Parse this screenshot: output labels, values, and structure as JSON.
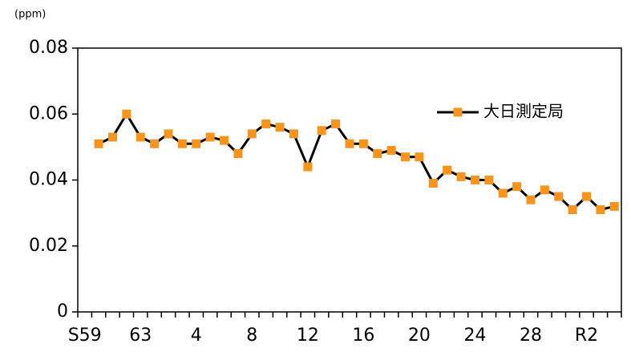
{
  "chart_data": {
    "type": "line",
    "y_label": "(ppm)",
    "categories": [
      "S59",
      null,
      null,
      null,
      "63",
      null,
      null,
      null,
      "4",
      null,
      null,
      null,
      "8",
      null,
      null,
      null,
      "12",
      null,
      null,
      null,
      "16",
      null,
      null,
      null,
      "20",
      null,
      null,
      null,
      "24",
      null,
      null,
      null,
      "28",
      null,
      null,
      null,
      "R2",
      null,
      null
    ],
    "series": [
      {
        "name": "大日測定局",
        "color": "#000000",
        "marker_color": "#f7941d",
        "values": [
          null,
          0.051,
          0.053,
          0.06,
          0.053,
          0.051,
          0.054,
          0.051,
          0.051,
          0.053,
          0.052,
          0.048,
          0.054,
          0.057,
          0.056,
          0.054,
          0.044,
          0.055,
          0.057,
          0.051,
          0.051,
          0.048,
          0.049,
          0.047,
          0.047,
          0.039,
          0.043,
          0.041,
          0.04,
          0.04,
          0.036,
          0.038,
          0.034,
          0.037,
          0.035,
          0.031,
          0.035,
          0.031,
          0.032
        ]
      }
    ],
    "ylim": [
      0,
      0.08
    ],
    "yticks": [
      0,
      0.02,
      0.04,
      0.06,
      0.08
    ],
    "grid": false,
    "legend": "right"
  }
}
